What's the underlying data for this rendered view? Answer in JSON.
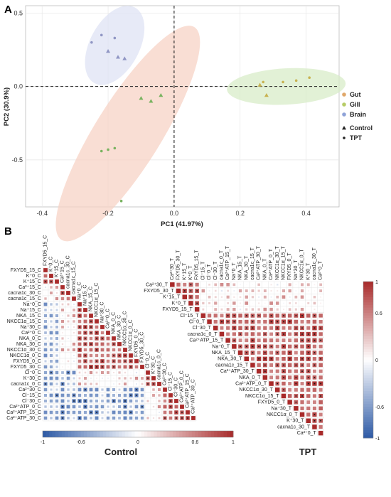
{
  "panels": {
    "a": "A",
    "b": "B"
  },
  "chart_data": [
    {
      "type": "scatter",
      "title": "",
      "xlabel": "PC1 (41.97%)",
      "ylabel": "PC2 (30.9%)",
      "xlim": [
        -0.45,
        0.5
      ],
      "ylim": [
        -0.82,
        0.55
      ],
      "xticks": [
        "-0.4",
        "-0.2",
        "0.0",
        "0.2",
        "0.4"
      ],
      "yticks": [
        "0.5",
        "0.0",
        "-0.5"
      ],
      "grid": true,
      "legend_placement": "right",
      "tissue_legend": [
        {
          "name": "Gut",
          "color": "#e0a86a"
        },
        {
          "name": "Gill",
          "color": "#b7cc67"
        },
        {
          "name": "Brain",
          "color": "#8fa3d8"
        }
      ],
      "treatment_legend": [
        {
          "name": "Control",
          "marker": "triangle"
        },
        {
          "name": "TPT",
          "marker": "circle"
        }
      ],
      "series": [
        {
          "group": "Gut",
          "color": "#79b360",
          "points": [
            {
              "x": -0.16,
              "y": -0.78,
              "m": "circle"
            },
            {
              "x": -0.22,
              "y": -0.44,
              "m": "circle"
            },
            {
              "x": -0.2,
              "y": -0.43,
              "m": "circle"
            },
            {
              "x": -0.18,
              "y": -0.42,
              "m": "circle"
            },
            {
              "x": -0.1,
              "y": -0.08,
              "m": "triangle"
            },
            {
              "x": -0.07,
              "y": -0.1,
              "m": "triangle"
            },
            {
              "x": -0.04,
              "y": -0.06,
              "m": "triangle"
            }
          ]
        },
        {
          "group": "Gill",
          "color": "#c8b250",
          "points": [
            {
              "x": 0.26,
              "y": 0.01,
              "m": "triangle"
            },
            {
              "x": 0.27,
              "y": 0.03,
              "m": "circle"
            },
            {
              "x": 0.28,
              "y": -0.06,
              "m": "triangle"
            },
            {
              "x": 0.33,
              "y": 0.03,
              "m": "circle"
            },
            {
              "x": 0.37,
              "y": 0.04,
              "m": "circle"
            },
            {
              "x": 0.41,
              "y": 0.06,
              "m": "circle"
            }
          ]
        },
        {
          "group": "Brain",
          "color": "#9096c4",
          "points": [
            {
              "x": -0.25,
              "y": 0.3,
              "m": "circle"
            },
            {
              "x": -0.22,
              "y": 0.35,
              "m": "circle"
            },
            {
              "x": -0.18,
              "y": 0.33,
              "m": "circle"
            },
            {
              "x": -0.2,
              "y": 0.24,
              "m": "triangle"
            },
            {
              "x": -0.17,
              "y": 0.2,
              "m": "triangle"
            },
            {
              "x": -0.15,
              "y": 0.19,
              "m": "triangle"
            }
          ]
        }
      ],
      "ellipses": [
        {
          "group": "Gut",
          "fill": "#f7d3c5",
          "cx": -0.14,
          "cy": -0.32,
          "rx": 0.38,
          "ry": 0.1,
          "angle_deg": -58
        },
        {
          "group": "Gill",
          "fill": "#d8ecc8",
          "cx": 0.34,
          "cy": 0.0,
          "rx": 0.18,
          "ry": 0.055,
          "angle_deg": -3
        },
        {
          "group": "Brain",
          "fill": "#dfe3f4",
          "cx": -0.18,
          "cy": 0.28,
          "rx": 0.13,
          "ry": 0.075,
          "angle_deg": -62
        }
      ]
    },
    {
      "type": "heatmap",
      "name": "Control",
      "title": "Control",
      "variables": [
        "FXYD5_15_C",
        "K⁺0_C",
        "K⁺15_C",
        "Ca²⁺15_C",
        "cacna1c_30_C",
        "cacna1c_15_C",
        "Na⁺0_C",
        "Na⁺15_C",
        "NKA_15_C",
        "NKCC1α_15_C",
        "Na⁺30_C",
        "Ca²⁺0_C",
        "NKA_0_C",
        "NKA_30_C",
        "NKCC1α_30_C",
        "NKCC1α_0_C",
        "FXYD5_0_C",
        "FXYD5_30_C",
        "Cl⁻0_C",
        "K⁺30_C",
        "cacna1c_0_C",
        "Ca²⁺30_C",
        "Cl⁻15_C",
        "Cl⁻30_C",
        "Ca²⁺ATP_0_C",
        "Ca²⁺ATP_15_C",
        "Ca²⁺ATP_30_C"
      ],
      "blocks": [
        3,
        3,
        12,
        3,
        6
      ],
      "colorbar": {
        "ticks": [
          "-1",
          "-0.6",
          "0",
          "0.6",
          "1"
        ],
        "low": "#2e5aa6",
        "mid": "#ffffff",
        "high": "#a82a2a"
      }
    },
    {
      "type": "heatmap",
      "name": "TPT",
      "title": "TPT",
      "variables": [
        "Ca²⁺30_T",
        "FXYD5_30_T",
        "K⁺15_T",
        "K⁺0_T",
        "FXYD5_15_T",
        "Cl⁻15_T",
        "Cl⁻0_T",
        "Cl⁻30_T",
        "cacna1c_0_T",
        "Ca²⁺ATP_15_T",
        "Na⁺0_T",
        "NKA_15_T",
        "NKA_30_T",
        "cacna1c_15_T",
        "Ca²⁺ATP_30_T",
        "NKA_0_T",
        "Ca²⁺ATP_0_T",
        "NKCC1α_30_T",
        "NKCC1α_15_T",
        "FXYD5_0_T",
        "Na⁺30_T",
        "NKCC1α_0_T",
        "K⁺30_T",
        "cacna1c_30_T",
        "Ca²⁺0_T"
      ],
      "blocks": [
        5,
        20
      ],
      "colorbar": {
        "ticks": [
          "1",
          "0.6",
          "0",
          "-0.6",
          "-1"
        ],
        "low": "#2e5aa6",
        "mid": "#ffffff",
        "high": "#a82a2a"
      }
    }
  ]
}
